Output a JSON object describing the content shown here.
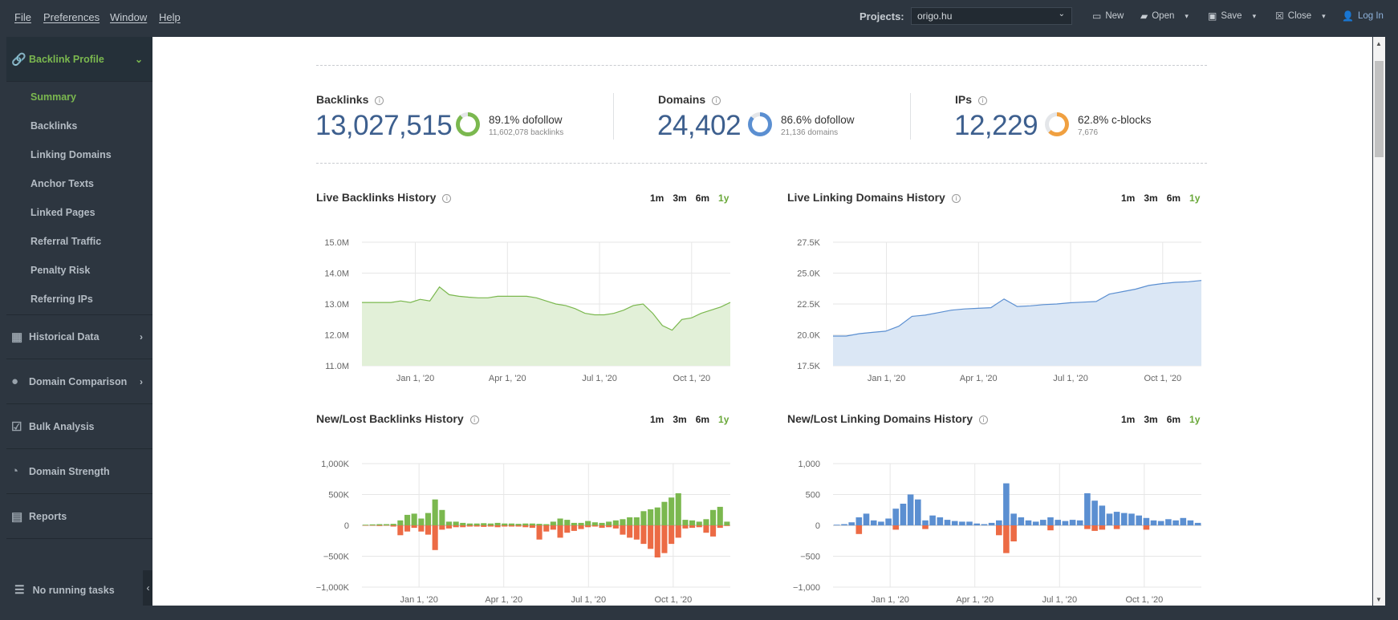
{
  "menubar": {
    "items": [
      {
        "label": "File"
      },
      {
        "label": "Preferences"
      },
      {
        "label": "Window"
      },
      {
        "label": "Help"
      }
    ],
    "projects_label": "Projects:",
    "project_value": "origo.hu",
    "tools": {
      "new": "New",
      "open": "Open",
      "save": "Save",
      "close": "Close",
      "login": "Log In"
    }
  },
  "sidebar": {
    "backlink_profile": "Backlink Profile",
    "sub_items": [
      "Summary",
      "Backlinks",
      "Linking Domains",
      "Anchor Texts",
      "Linked Pages",
      "Referral Traffic",
      "Penalty Risk",
      "Referring IPs"
    ],
    "active_sub": "Summary",
    "sections": [
      "Historical Data",
      "Domain Comparison",
      "Bulk Analysis",
      "Domain Strength",
      "Reports"
    ],
    "footer": "No running tasks"
  },
  "stats": {
    "backlinks": {
      "title": "Backlinks",
      "value": "13,027,515",
      "pct_label": "89.1% dofollow",
      "sub": "11,602,078 backlinks",
      "ratio": 0.891,
      "color": "#7bb84f"
    },
    "domains": {
      "title": "Domains",
      "value": "24,402",
      "pct_label": "86.6% dofollow",
      "sub": "21,136 domains",
      "ratio": 0.866,
      "color": "#5b8fd1"
    },
    "ips": {
      "title": "IPs",
      "value": "12,229",
      "pct_label": "62.8% c-blocks",
      "sub": "7,676",
      "ratio": 0.628,
      "color": "#f0a040"
    }
  },
  "ranges": [
    "1m",
    "3m",
    "6m",
    "1y"
  ],
  "active_range": "1y",
  "colors": {
    "green": "#7bb84f",
    "blue": "#5b8fd1",
    "red": "#ec6b45",
    "pale_red": "#f5b19e",
    "pale_green": "#b5d99a"
  },
  "chart_data": [
    {
      "type": "area",
      "title": "Live Backlinks History",
      "x_ticks": [
        "Jan 1, '20",
        "Apr 1, '20",
        "Jul 1, '20",
        "Oct 1, '20"
      ],
      "y_ticks": [
        "15.0M",
        "14.0M",
        "13.0M",
        "12.0M",
        "11.0M"
      ],
      "ylim": [
        11.0,
        15.0
      ],
      "y": [
        13.05,
        13.05,
        13.05,
        13.05,
        13.1,
        13.05,
        13.15,
        13.1,
        13.55,
        13.3,
        13.25,
        13.22,
        13.2,
        13.2,
        13.25,
        13.25,
        13.25,
        13.25,
        13.2,
        13.1,
        13.0,
        12.95,
        12.85,
        12.7,
        12.65,
        12.65,
        12.7,
        12.8,
        12.95,
        13.0,
        12.7,
        12.3,
        12.15,
        12.5,
        12.55,
        12.7,
        12.8,
        12.9,
        13.05
      ]
    },
    {
      "type": "area",
      "title": "Live Linking Domains History",
      "x_ticks": [
        "Jan 1, '20",
        "Apr 1, '20",
        "Jul 1, '20",
        "Oct 1, '20"
      ],
      "y_ticks": [
        "27.5K",
        "25.0K",
        "22.5K",
        "20.0K",
        "17.5K"
      ],
      "ylim": [
        17.5,
        27.5
      ],
      "y": [
        19.9,
        19.9,
        20.1,
        20.2,
        20.3,
        20.7,
        21.5,
        21.6,
        21.8,
        22.0,
        22.1,
        22.15,
        22.2,
        22.9,
        22.3,
        22.35,
        22.45,
        22.5,
        22.6,
        22.65,
        22.7,
        23.3,
        23.5,
        23.7,
        24.0,
        24.15,
        24.25,
        24.3,
        24.4
      ]
    },
    {
      "type": "bar",
      "title": "New/Lost Backlinks History",
      "x_ticks": [
        "Jan 1, '20",
        "Apr 1, '20",
        "Jul 1, '20",
        "Oct 1, '20"
      ],
      "y_ticks": [
        "1,000K",
        "500K",
        "0",
        "−500K",
        "−1,000K"
      ],
      "ylim": [
        -1000,
        1000
      ],
      "series": [
        {
          "name": "new",
          "values": [
            10,
            15,
            20,
            20,
            25,
            80,
            170,
            190,
            110,
            200,
            420,
            250,
            60,
            60,
            40,
            30,
            30,
            35,
            30,
            40,
            30,
            30,
            25,
            30,
            30,
            25,
            20,
            60,
            110,
            90,
            40,
            40,
            70,
            50,
            40,
            60,
            80,
            100,
            130,
            130,
            230,
            260,
            290,
            380,
            450,
            520,
            90,
            80,
            60,
            100,
            250,
            300,
            60
          ]
        },
        {
          "name": "lost",
          "values": [
            -5,
            -5,
            -10,
            -5,
            -20,
            -160,
            -100,
            -40,
            -100,
            -150,
            -400,
            -70,
            -50,
            -30,
            -30,
            -20,
            -20,
            -25,
            -20,
            -30,
            -20,
            -20,
            -20,
            -30,
            -40,
            -230,
            -100,
            -70,
            -200,
            -120,
            -90,
            -60,
            -30,
            -20,
            -40,
            -30,
            -50,
            -150,
            -200,
            -230,
            -300,
            -380,
            -520,
            -450,
            -300,
            -200,
            -50,
            -40,
            -30,
            -120,
            -180,
            -40,
            -10
          ]
        }
      ]
    },
    {
      "type": "bar",
      "title": "New/Lost Linking Domains History",
      "x_ticks": [
        "Jan 1, '20",
        "Apr 1, '20",
        "Jul 1, '20",
        "Oct 1, '20"
      ],
      "y_ticks": [
        "1,000",
        "500",
        "0",
        "−500",
        "−1,000"
      ],
      "ylim": [
        -1000,
        1000
      ],
      "series": [
        {
          "name": "new",
          "values": [
            10,
            20,
            50,
            130,
            190,
            80,
            60,
            110,
            270,
            350,
            500,
            420,
            80,
            160,
            130,
            90,
            70,
            60,
            60,
            30,
            20,
            40,
            80,
            680,
            190,
            130,
            80,
            60,
            90,
            130,
            90,
            70,
            90,
            80,
            520,
            400,
            320,
            190,
            220,
            200,
            190,
            160,
            120,
            80,
            70,
            100,
            80,
            120,
            80,
            40
          ]
        },
        {
          "name": "lost",
          "values": [
            0,
            0,
            0,
            -140,
            0,
            0,
            0,
            0,
            -70,
            0,
            0,
            0,
            -60,
            0,
            0,
            0,
            0,
            0,
            0,
            0,
            0,
            0,
            -160,
            -450,
            -260,
            0,
            0,
            0,
            0,
            -80,
            0,
            0,
            0,
            0,
            -60,
            -90,
            -70,
            0,
            -60,
            0,
            0,
            0,
            -70,
            0,
            0,
            0,
            0,
            0,
            0,
            0
          ]
        }
      ]
    }
  ]
}
